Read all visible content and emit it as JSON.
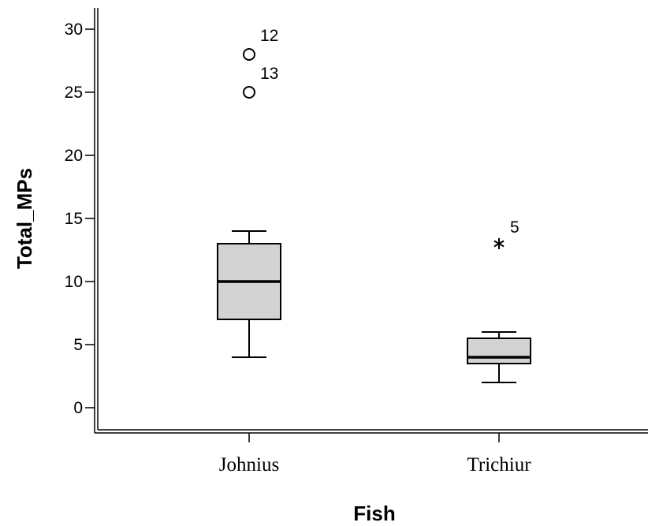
{
  "chart_data": {
    "type": "boxplot",
    "xlabel": "Fish",
    "ylabel": "Total_MPs",
    "ylim": [
      -1,
      31
    ],
    "yticks": [
      0,
      5,
      10,
      15,
      20,
      25,
      30
    ],
    "grid": false,
    "colors": {
      "box_fill": "#d3d3d3",
      "stroke": "#000000",
      "background": "#ffffff"
    },
    "groups": [
      {
        "category": "Johnius",
        "min": 4,
        "q1": 7,
        "median": 10,
        "q3": 13,
        "max": 14,
        "outliers": [
          {
            "value": 28,
            "label": "12",
            "marker": "circle"
          },
          {
            "value": 25,
            "label": "13",
            "marker": "circle"
          }
        ]
      },
      {
        "category": "Trichiur",
        "min": 2,
        "q1": 3.5,
        "median": 4,
        "q3": 5.5,
        "max": 6,
        "outliers": [
          {
            "value": 13,
            "label": "5",
            "marker": "star"
          }
        ]
      }
    ]
  }
}
